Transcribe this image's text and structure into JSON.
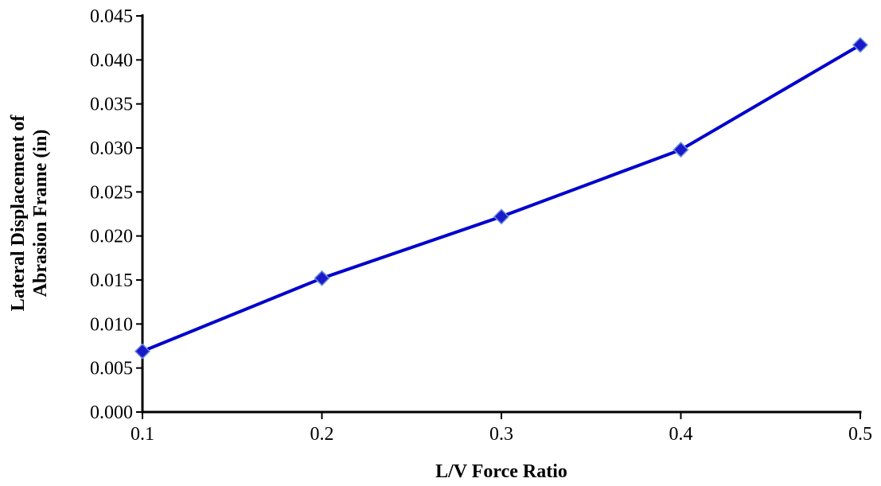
{
  "chart_data": {
    "type": "line",
    "title": "",
    "xlabel": "L/V Force Ratio",
    "ylabel_lines": [
      "Lateral Displacement of",
      "Abrasion Frame (in)"
    ],
    "x": [
      0.1,
      0.2,
      0.3,
      0.4,
      0.5
    ],
    "series": [
      {
        "values": [
          0.0069,
          0.0152,
          0.0222,
          0.0298,
          0.0417
        ]
      }
    ],
    "xlim": [
      0.1,
      0.5
    ],
    "ylim": [
      0,
      0.045
    ],
    "x_ticks": [
      "0.1",
      "0.2",
      "0.3",
      "0.4",
      "0.5"
    ],
    "y_ticks": [
      "0.000",
      "0.005",
      "0.010",
      "0.015",
      "0.020",
      "0.025",
      "0.030",
      "0.035",
      "0.040",
      "0.045"
    ],
    "grid": false,
    "legend": "none",
    "colors": {
      "line": "#0000cc",
      "marker_fill": "#1a1acc",
      "marker_stroke": "#6a8fd6",
      "axis": "#000000"
    },
    "marker": "diamond"
  }
}
